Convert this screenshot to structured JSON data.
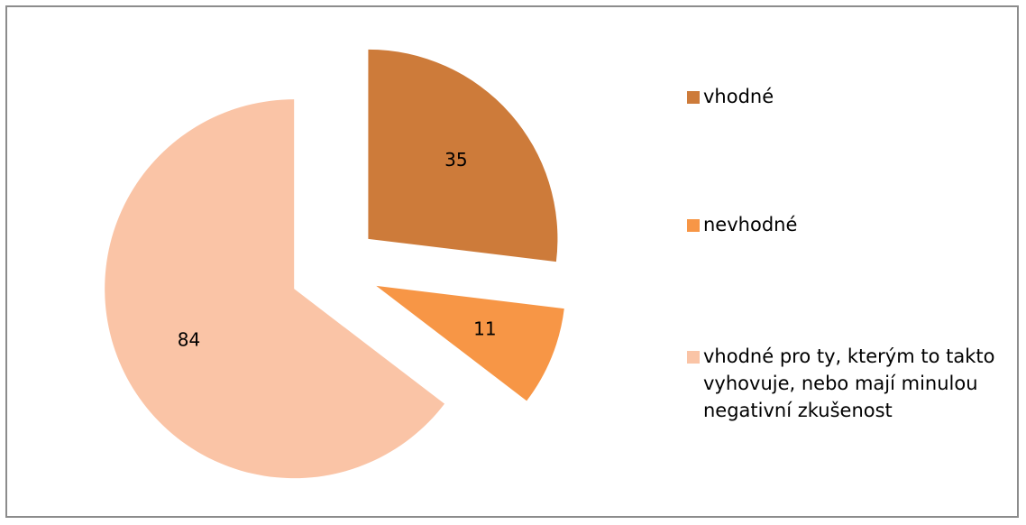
{
  "chart_data": {
    "type": "pie",
    "categories": [
      "vhodné",
      "nevhodné",
      "vhodné pro ty, kterým to takto vyhovuje, nebo mají minulou negativní zkušenost"
    ],
    "values": [
      35,
      11,
      84
    ],
    "colors": [
      "#cd7b3a",
      "#f79646",
      "#fac4a6"
    ]
  }
}
